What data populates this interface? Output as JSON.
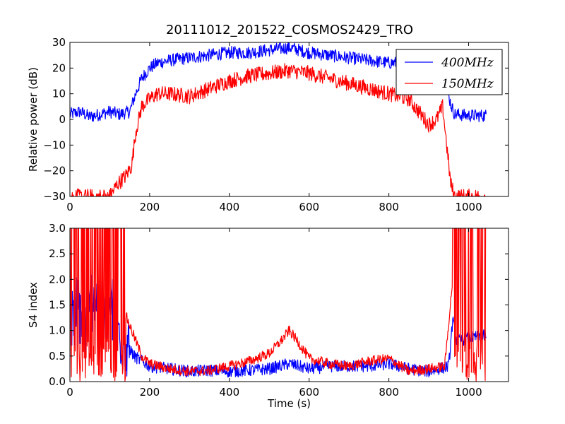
{
  "figure": {
    "title": "20111012_201522_COSMOS2429_TRO",
    "colors": {
      "blue": "#0000ff",
      "red": "#ff0000"
    }
  },
  "chart_data": [
    {
      "type": "line",
      "ylabel": "Relative power (dB)",
      "xlabel": "",
      "xlim": [
        0,
        1100
      ],
      "ylim": [
        -30,
        30
      ],
      "xticks": [
        0,
        200,
        400,
        600,
        800,
        1000
      ],
      "yticks": [
        -30,
        -20,
        -10,
        0,
        10,
        20,
        30
      ],
      "xtick_labels": [
        "0",
        "200",
        "400",
        "600",
        "800",
        "1000"
      ],
      "ytick_labels": [
        "−30",
        "−20",
        "−10",
        "0",
        "10",
        "20",
        "30"
      ],
      "legend": {
        "position": "top-right",
        "entries": [
          "400MHz",
          "150MHz"
        ]
      },
      "series": [
        {
          "name": "400MHz",
          "color": "#0000ff",
          "x": [
            0,
            25,
            50,
            75,
            100,
            125,
            150,
            165,
            180,
            200,
            220,
            250,
            300,
            350,
            400,
            450,
            500,
            550,
            600,
            650,
            700,
            750,
            800,
            850,
            900,
            930,
            945,
            955,
            965,
            1000,
            1045
          ],
          "y": [
            2,
            3,
            1,
            2,
            3,
            2,
            3,
            10,
            16,
            20,
            22,
            23,
            24,
            25,
            26,
            26,
            27,
            28,
            26,
            25,
            24,
            23,
            22,
            22,
            21,
            16,
            13,
            6,
            2,
            1.5,
            1.5
          ],
          "noise": 2.5
        },
        {
          "name": "150MHz",
          "color": "#ff0000",
          "x": [
            0,
            40,
            80,
            100,
            120,
            140,
            155,
            165,
            180,
            200,
            220,
            250,
            300,
            350,
            400,
            450,
            500,
            550,
            600,
            650,
            700,
            750,
            800,
            850,
            880,
            900,
            920,
            935,
            945,
            955,
            965,
            975,
            1000,
            1045
          ],
          "y": [
            -30,
            -30,
            -30,
            -30,
            -25,
            -22,
            -18,
            -5,
            5,
            8,
            10,
            10,
            9,
            12,
            15,
            17,
            18,
            19,
            18,
            16,
            14,
            12,
            10,
            8,
            2,
            -2,
            0,
            5,
            -10,
            -25,
            -30,
            -30,
            -30,
            -30
          ],
          "noise": 3
        }
      ]
    },
    {
      "type": "line",
      "ylabel": "S4 index",
      "xlabel": "Time (s)",
      "xlim": [
        0,
        1100
      ],
      "ylim": [
        0,
        3
      ],
      "xticks": [
        0,
        200,
        400,
        600,
        800,
        1000
      ],
      "yticks": [
        0,
        0.5,
        1,
        1.5,
        2,
        2.5,
        3
      ],
      "xtick_labels": [
        "0",
        "200",
        "400",
        "600",
        "800",
        "1000"
      ],
      "ytick_labels": [
        "0.0",
        "0.5",
        "1.0",
        "1.5",
        "2.0",
        "2.5",
        "3.0"
      ],
      "series": [
        {
          "name": "400MHz",
          "color": "#0000ff",
          "x": [
            0,
            20,
            40,
            60,
            80,
            100,
            120,
            140,
            160,
            180,
            200,
            250,
            300,
            350,
            400,
            450,
            500,
            550,
            600,
            650,
            700,
            750,
            800,
            850,
            900,
            950,
            960,
            970,
            1000,
            1045
          ],
          "y": [
            1.0,
            1.5,
            1.0,
            1.8,
            1.2,
            1.5,
            1.0,
            0.8,
            0.5,
            0.4,
            0.3,
            0.25,
            0.2,
            0.22,
            0.2,
            0.22,
            0.25,
            0.35,
            0.25,
            0.3,
            0.3,
            0.3,
            0.35,
            0.25,
            0.2,
            0.3,
            1.2,
            0.8,
            0.85,
            0.9
          ],
          "noise": 0.12
        },
        {
          "name": "150MHz",
          "color": "#ff0000",
          "x": [
            0,
            40,
            80,
            120,
            140,
            160,
            180,
            200,
            250,
            300,
            350,
            400,
            450,
            500,
            530,
            550,
            570,
            600,
            650,
            700,
            750,
            800,
            850,
            900,
            940,
            960,
            980,
            1000,
            1045
          ],
          "y": [
            2.0,
            2.0,
            2.0,
            2.0,
            1.3,
            0.9,
            0.5,
            0.35,
            0.25,
            0.2,
            0.22,
            0.3,
            0.4,
            0.55,
            0.8,
            1.0,
            0.8,
            0.45,
            0.35,
            0.3,
            0.4,
            0.45,
            0.2,
            0.25,
            0.3,
            2.0,
            2.0,
            2.0,
            2.0
          ],
          "noise": 0.1
        }
      ]
    }
  ]
}
